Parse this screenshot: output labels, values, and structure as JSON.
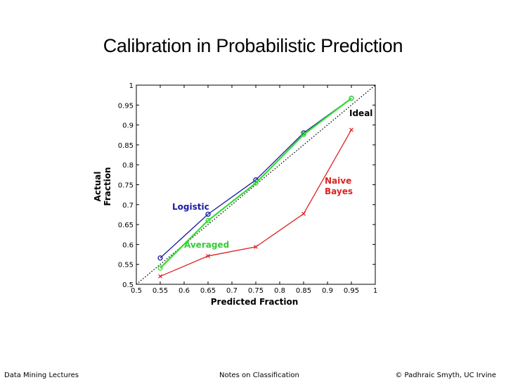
{
  "slide": {
    "title": "Calibration in Probabilistic Prediction",
    "footer_left": "Data Mining Lectures",
    "footer_center": "Notes on Classification",
    "footer_right": "© Padhraic Smyth, UC Irvine"
  },
  "chart_data": {
    "type": "line",
    "title": "",
    "xlabel": "Predicted Fraction",
    "ylabel": "Actual Fraction",
    "xlim": [
      0.5,
      1.0
    ],
    "ylim": [
      0.5,
      1.0
    ],
    "xticks": [
      "0.5",
      "0.55",
      "0.6",
      "0.65",
      "0.7",
      "0.75",
      "0.8",
      "0.85",
      "0.9",
      "0.95",
      "1"
    ],
    "yticks": [
      "0.5",
      "0.55",
      "0.6",
      "0.65",
      "0.7",
      "0.75",
      "0.8",
      "0.85",
      "0.9",
      "0.95",
      "1"
    ],
    "x": [
      0.55,
      0.65,
      0.75,
      0.85,
      0.95
    ],
    "series": [
      {
        "name": "Logistic",
        "values": [
          0.566,
          0.676,
          0.762,
          0.88,
          0.967
        ],
        "color": "#1a1aa6",
        "marker": "circle"
      },
      {
        "name": "Averaged",
        "values": [
          0.541,
          0.66,
          0.754,
          0.876,
          0.967
        ],
        "color": "#33dd33",
        "marker": "circle"
      },
      {
        "name": "Naive Bayes",
        "values": [
          0.52,
          0.571,
          0.594,
          0.677,
          0.888
        ],
        "color": "#dd2222",
        "marker": "x"
      }
    ],
    "ideal": {
      "name": "Ideal",
      "values": [
        0.5,
        1.0
      ],
      "color": "#000000",
      "style": "dotted"
    },
    "annotations": [
      {
        "text": "Ideal",
        "series": "ideal"
      },
      {
        "text": "Logistic",
        "series": "Logistic"
      },
      {
        "text": "Averaged",
        "series": "Averaged"
      },
      {
        "text": "Naive",
        "series": "Naive Bayes"
      },
      {
        "text": "Bayes",
        "series": "Naive Bayes"
      }
    ],
    "grid": false,
    "legend": "none"
  }
}
